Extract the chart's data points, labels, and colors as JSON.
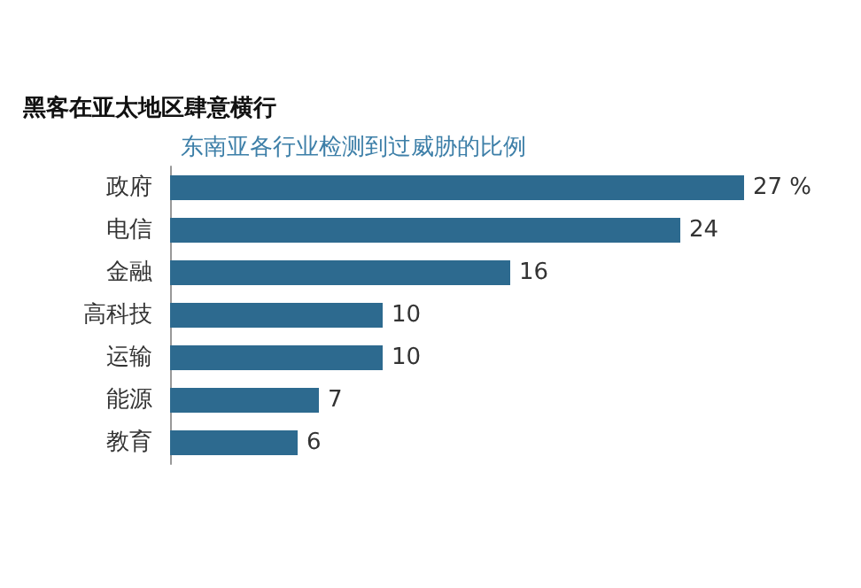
{
  "chart_data": {
    "type": "bar",
    "orientation": "horizontal",
    "title": "黑客在亚太地区肆意横行",
    "subtitle": "东南亚各行业检测到过威胁的比例",
    "categories": [
      "政府",
      "电信",
      "金融",
      "高科技",
      "运输",
      "能源",
      "教育"
    ],
    "values": [
      27,
      24,
      16,
      10,
      10,
      7,
      6
    ],
    "value_labels": [
      "27 %",
      "24",
      "16",
      "10",
      "10",
      "7",
      "6"
    ],
    "color": "#2d6a8f"
  }
}
